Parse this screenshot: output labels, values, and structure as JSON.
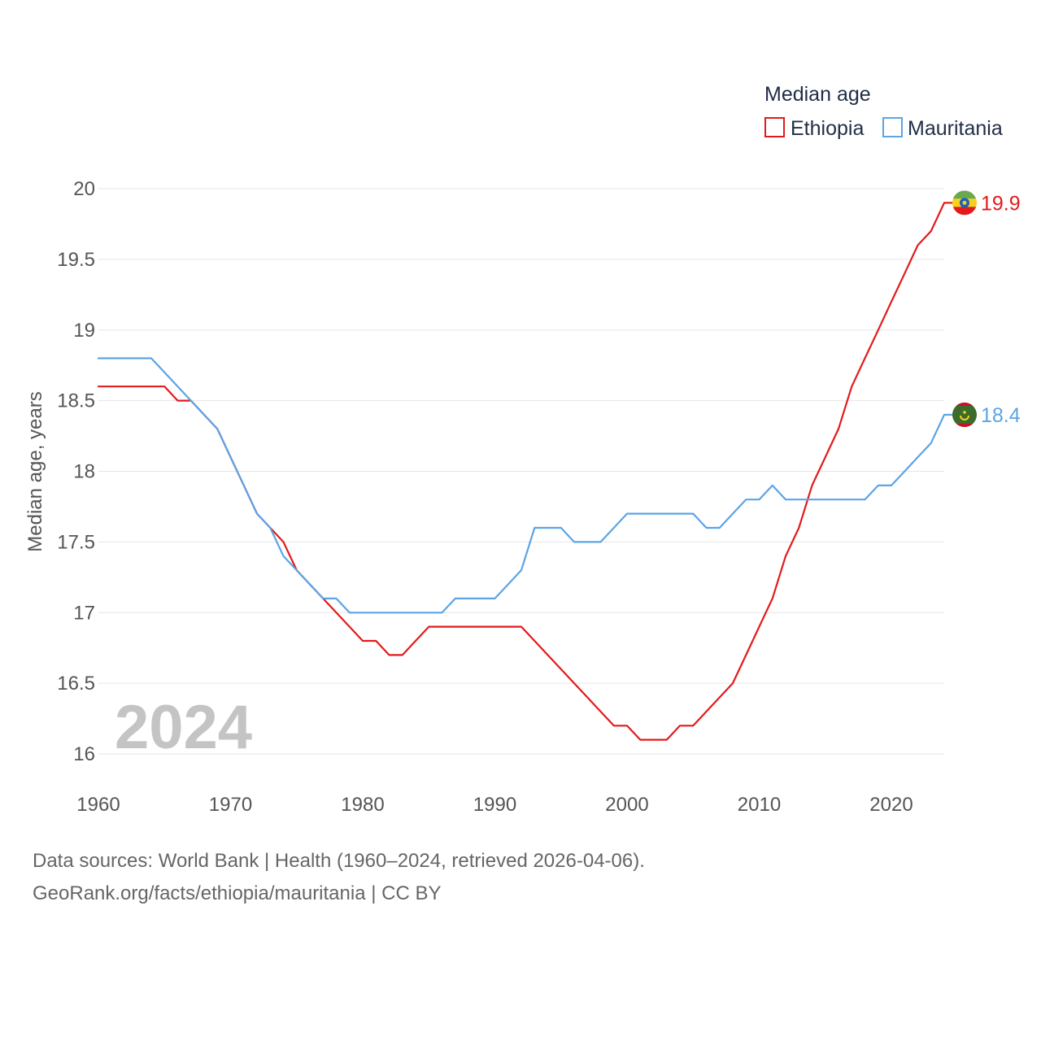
{
  "chart_data": {
    "type": "line",
    "legend_title": "Median age",
    "ylabel": "Median age, years",
    "year_label": "2024",
    "xlim": [
      1960,
      2024
    ],
    "ylim": [
      16,
      20
    ],
    "x_ticks": [
      1960,
      1970,
      1980,
      1990,
      2000,
      2010,
      2020
    ],
    "y_ticks": [
      16,
      16.5,
      17,
      17.5,
      18,
      18.5,
      19,
      19.5,
      20
    ],
    "y_tick_labels": [
      "16",
      "16.5",
      "17",
      "17.5",
      "18",
      "18.5",
      "19",
      "19.5",
      "20"
    ],
    "x": [
      1960,
      1961,
      1962,
      1963,
      1964,
      1965,
      1966,
      1967,
      1968,
      1969,
      1970,
      1971,
      1972,
      1973,
      1974,
      1975,
      1976,
      1977,
      1978,
      1979,
      1980,
      1981,
      1982,
      1983,
      1984,
      1985,
      1986,
      1987,
      1988,
      1989,
      1990,
      1991,
      1992,
      1993,
      1994,
      1995,
      1996,
      1997,
      1998,
      1999,
      2000,
      2001,
      2002,
      2003,
      2004,
      2005,
      2006,
      2007,
      2008,
      2009,
      2010,
      2011,
      2012,
      2013,
      2014,
      2015,
      2016,
      2017,
      2018,
      2019,
      2020,
      2021,
      2022,
      2023,
      2024
    ],
    "series": [
      {
        "name": "Ethiopia",
        "color": "#e31a1c",
        "end_label": "19.9",
        "flag": "ethiopia-flag",
        "values": [
          18.6,
          18.6,
          18.6,
          18.6,
          18.6,
          18.6,
          18.5,
          18.5,
          18.4,
          18.3,
          18.1,
          17.9,
          17.7,
          17.6,
          17.5,
          17.3,
          17.2,
          17.1,
          17.0,
          16.9,
          16.8,
          16.8,
          16.7,
          16.7,
          16.8,
          16.9,
          16.9,
          16.9,
          16.9,
          16.9,
          16.9,
          16.9,
          16.9,
          16.8,
          16.7,
          16.6,
          16.5,
          16.4,
          16.3,
          16.2,
          16.2,
          16.1,
          16.1,
          16.1,
          16.2,
          16.2,
          16.3,
          16.4,
          16.5,
          16.7,
          16.9,
          17.1,
          17.4,
          17.6,
          17.9,
          18.1,
          18.3,
          18.6,
          18.8,
          19.0,
          19.2,
          19.4,
          19.6,
          19.7,
          19.9
        ]
      },
      {
        "name": "Mauritania",
        "color": "#5ba4e6",
        "end_label": "18.4",
        "flag": "mauritania-flag",
        "values": [
          18.8,
          18.8,
          18.8,
          18.8,
          18.8,
          18.7,
          18.6,
          18.5,
          18.4,
          18.3,
          18.1,
          17.9,
          17.7,
          17.6,
          17.4,
          17.3,
          17.2,
          17.1,
          17.1,
          17.0,
          17.0,
          17.0,
          17.0,
          17.0,
          17.0,
          17.0,
          17.0,
          17.1,
          17.1,
          17.1,
          17.1,
          17.2,
          17.3,
          17.6,
          17.6,
          17.6,
          17.5,
          17.5,
          17.5,
          17.6,
          17.7,
          17.7,
          17.7,
          17.7,
          17.7,
          17.7,
          17.6,
          17.6,
          17.7,
          17.8,
          17.8,
          17.9,
          17.8,
          17.8,
          17.8,
          17.8,
          17.8,
          17.8,
          17.8,
          17.9,
          17.9,
          18.0,
          18.1,
          18.2,
          18.4
        ]
      }
    ]
  },
  "footer": {
    "source_line": "Data sources: World Bank | Health (1960–2024, retrieved 2026-04-06).",
    "credit_line": "GeoRank.org/facts/ethiopia/mauritania | CC BY"
  }
}
